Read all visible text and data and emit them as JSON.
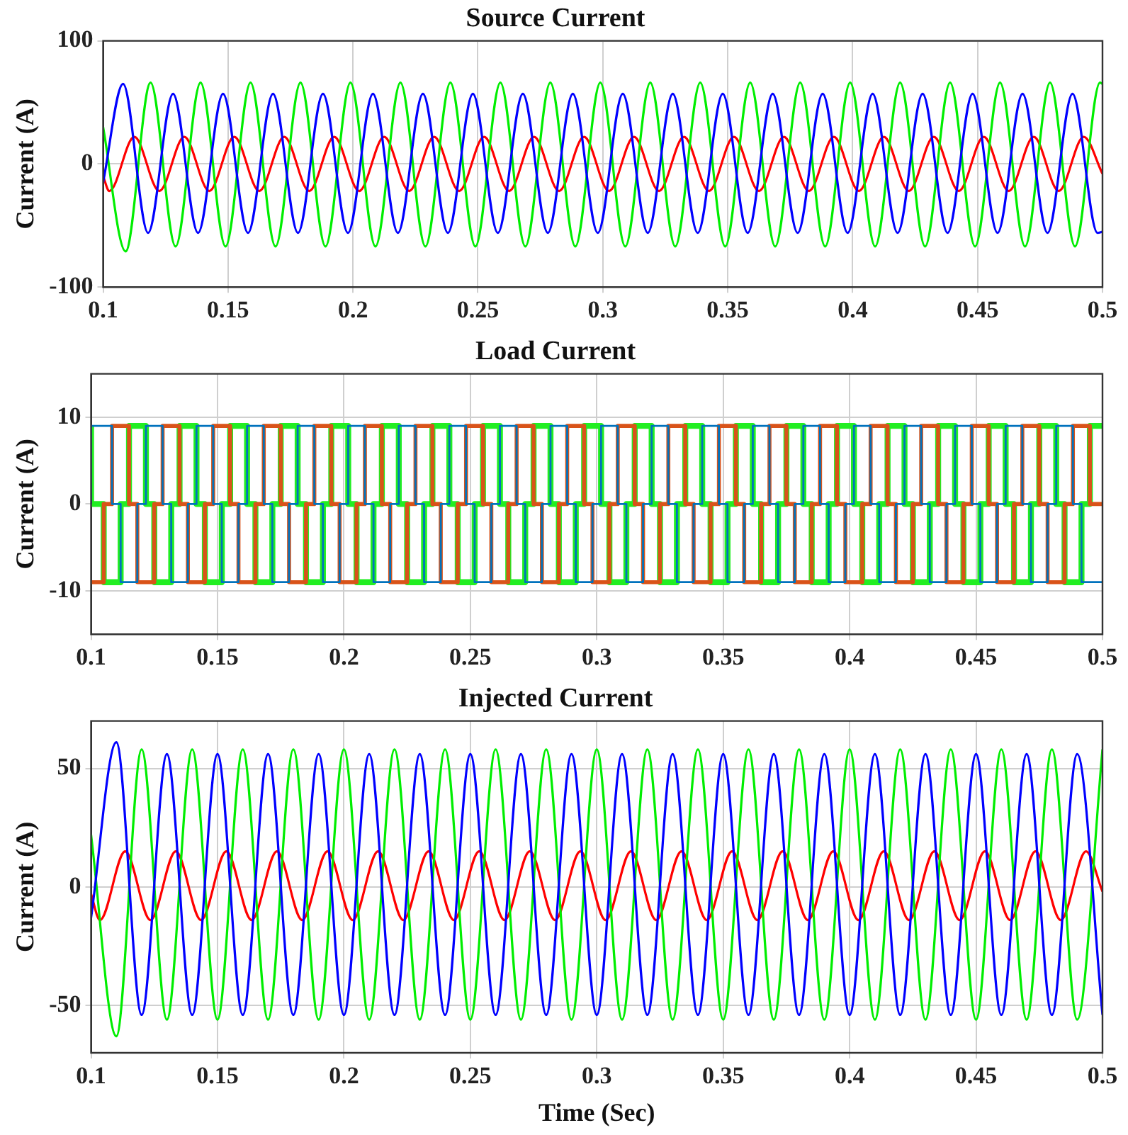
{
  "chart_data": [
    {
      "type": "line",
      "title": "Source Current",
      "ylabel": "Current (A)",
      "xlim": [
        0.1,
        0.5
      ],
      "xticks": [
        0.1,
        0.15,
        0.2,
        0.25,
        0.3,
        0.35,
        0.4,
        0.45,
        0.5
      ],
      "ylim": [
        -100,
        100
      ],
      "yticks": [
        -100,
        0,
        100
      ],
      "grid": true,
      "series": [
        {
          "color": "#0000ff",
          "x": [
            0.1,
            0.108,
            0.118,
            0.128,
            0.138,
            0.148,
            0.158,
            0.168,
            0.178,
            0.188,
            0.198,
            0.208,
            0.218,
            0.228,
            0.238,
            0.248,
            0.258,
            0.268,
            0.278,
            0.288,
            0.298,
            0.308,
            0.318,
            0.328,
            0.338,
            0.348,
            0.358,
            0.368,
            0.378,
            0.388,
            0.398,
            0.408,
            0.418,
            0.428,
            0.438,
            0.448,
            0.458,
            0.468,
            0.478,
            0.488,
            0.498,
            0.5
          ],
          "values": [
            -15,
            65,
            -56,
            57,
            -56,
            57,
            -56,
            57,
            -56,
            57,
            -56,
            57,
            -56,
            57,
            -56,
            57,
            -56,
            57,
            -56,
            57,
            -56,
            57,
            -56,
            57,
            -56,
            57,
            -56,
            57,
            -56,
            57,
            -56,
            57,
            -56,
            57,
            -56,
            57,
            -56,
            57,
            -56,
            57,
            -56,
            -55
          ]
        },
        {
          "color": "#00ee00",
          "x": [
            0.1,
            0.109,
            0.119,
            0.129,
            0.139,
            0.149,
            0.159,
            0.169,
            0.179,
            0.189,
            0.199,
            0.209,
            0.219,
            0.229,
            0.239,
            0.249,
            0.259,
            0.269,
            0.279,
            0.289,
            0.299,
            0.309,
            0.319,
            0.329,
            0.339,
            0.349,
            0.359,
            0.369,
            0.379,
            0.389,
            0.399,
            0.409,
            0.419,
            0.429,
            0.439,
            0.449,
            0.459,
            0.469,
            0.479,
            0.489,
            0.499,
            0.5
          ],
          "values": [
            30,
            -71,
            66,
            -67,
            66,
            -67,
            66,
            -67,
            66,
            -67,
            66,
            -67,
            66,
            -67,
            66,
            -67,
            66,
            -67,
            66,
            -67,
            66,
            -67,
            66,
            -67,
            66,
            -67,
            66,
            -67,
            66,
            -67,
            66,
            -67,
            66,
            -67,
            66,
            -67,
            66,
            -67,
            66,
            -67,
            66,
            65
          ]
        },
        {
          "color": "#ff0000",
          "x": [
            0.1,
            0.1025,
            0.1125,
            0.1225,
            0.1325,
            0.1425,
            0.1525,
            0.1625,
            0.1725,
            0.1825,
            0.1925,
            0.2025,
            0.2125,
            0.2225,
            0.2325,
            0.2425,
            0.2525,
            0.2625,
            0.2725,
            0.2825,
            0.2925,
            0.3025,
            0.3125,
            0.3225,
            0.3325,
            0.3425,
            0.3525,
            0.3625,
            0.3725,
            0.3825,
            0.3925,
            0.4025,
            0.4125,
            0.4225,
            0.4325,
            0.4425,
            0.4525,
            0.4625,
            0.4725,
            0.4825,
            0.4925,
            0.5
          ],
          "values": [
            -10,
            -22,
            22,
            -22,
            22,
            -22,
            22,
            -22,
            22,
            -22,
            22,
            -22,
            22,
            -22,
            22,
            -22,
            22,
            -22,
            22,
            -22,
            22,
            -22,
            22,
            -22,
            22,
            -22,
            22,
            -22,
            22,
            -22,
            22,
            -22,
            22,
            -22,
            22,
            -22,
            22,
            -22,
            22,
            -22,
            22,
            -8
          ]
        }
      ]
    },
    {
      "type": "step",
      "title": "Load Current",
      "ylabel": "Current (A)",
      "xlim": [
        0.1,
        0.5
      ],
      "xticks": [
        0.1,
        0.15,
        0.2,
        0.25,
        0.3,
        0.35,
        0.4,
        0.45,
        0.5
      ],
      "ylim": [
        -15,
        15
      ],
      "yticks": [
        -10,
        0,
        10
      ],
      "grid": true,
      "x": [
        0.1,
        0.105,
        0.1083,
        0.1117,
        0.115,
        0.1183,
        0.1217,
        0.125,
        0.1283,
        0.1317,
        0.135,
        0.1383,
        0.1417,
        0.145,
        0.1483,
        0.1517,
        0.155,
        0.1583,
        0.1617,
        0.165,
        0.1683,
        0.1717,
        0.175,
        0.1783,
        0.1817,
        0.185,
        0.1883,
        0.1917,
        0.195,
        0.1983,
        0.2017,
        0.205,
        0.2083,
        0.2117,
        0.215,
        0.2183,
        0.2217,
        0.225,
        0.2283,
        0.2317,
        0.235,
        0.2383,
        0.2417,
        0.245,
        0.2483,
        0.2517,
        0.255,
        0.2583,
        0.2617,
        0.265,
        0.2683,
        0.2717,
        0.275,
        0.2783,
        0.2817,
        0.285,
        0.2883,
        0.2917,
        0.295,
        0.2983,
        0.3017,
        0.305,
        0.3083,
        0.3117,
        0.315,
        0.3183,
        0.3217,
        0.325,
        0.3283,
        0.3317,
        0.335,
        0.3383,
        0.3417,
        0.345,
        0.3483,
        0.3517,
        0.355,
        0.3583,
        0.3617,
        0.365,
        0.3683,
        0.3717,
        0.375,
        0.3783,
        0.3817,
        0.385,
        0.3883,
        0.3917,
        0.395,
        0.3983,
        0.4017,
        0.405,
        0.4083,
        0.4117,
        0.415,
        0.4183,
        0.4217,
        0.425,
        0.4283,
        0.4317,
        0.435,
        0.4383,
        0.4417,
        0.445,
        0.4483,
        0.4517,
        0.455,
        0.4583,
        0.4617,
        0.465,
        0.4683,
        0.4717,
        0.475,
        0.4783,
        0.4817,
        0.485,
        0.4883,
        0.4917,
        0.495,
        0.4983,
        0.5
      ],
      "series": [
        {
          "color": "#0072bd",
          "values": [
            0,
            9,
            9,
            0,
            -9,
            -9,
            0,
            9,
            9,
            0,
            -9,
            -9,
            0,
            9,
            9,
            0,
            -9,
            -9,
            0,
            9,
            9,
            0,
            -9,
            -9,
            0,
            9,
            9,
            0,
            -9,
            -9,
            0,
            9,
            9,
            0,
            -9,
            -9,
            0,
            9,
            9,
            0,
            -9,
            -9,
            0,
            9,
            9,
            0,
            -9,
            -9,
            0,
            9,
            9,
            0,
            -9,
            -9,
            0,
            9,
            9,
            0,
            -9,
            -9,
            0,
            9,
            9,
            0,
            -9,
            -9,
            0,
            9,
            9,
            0,
            -9,
            -9,
            0,
            9,
            9,
            0,
            -9,
            -9,
            0,
            9,
            9,
            0,
            -9,
            -9,
            0,
            9,
            9,
            0,
            -9,
            -9,
            0,
            9,
            9,
            0,
            -9,
            -9,
            0,
            9,
            9,
            0,
            -9,
            -9,
            0,
            9,
            9,
            0,
            -9,
            -9,
            0,
            9,
            9,
            0,
            -9,
            -9,
            0,
            9,
            9,
            0,
            -9,
            -9,
            -9
          ]
        },
        {
          "color": "#d95319",
          "values": [
            -9,
            -9,
            0,
            9,
            9,
            0,
            -9,
            -9,
            0,
            9,
            9,
            0,
            -9,
            -9,
            0,
            9,
            9,
            0,
            -9,
            -9,
            0,
            9,
            9,
            0,
            -9,
            -9,
            0,
            9,
            9,
            0,
            -9,
            -9,
            0,
            9,
            9,
            0,
            -9,
            -9,
            0,
            9,
            9,
            0,
            -9,
            -9,
            0,
            9,
            9,
            0,
            -9,
            -9,
            0,
            9,
            9,
            0,
            -9,
            -9,
            0,
            9,
            9,
            0,
            -9,
            -9,
            0,
            9,
            9,
            0,
            -9,
            -9,
            0,
            9,
            9,
            0,
            -9,
            -9,
            0,
            9,
            9,
            0,
            -9,
            -9,
            0,
            9,
            9,
            0,
            -9,
            -9,
            0,
            9,
            9,
            0,
            -9,
            -9,
            0,
            9,
            9,
            0,
            -9,
            -9,
            0,
            9,
            9,
            0,
            -9,
            -9,
            0,
            9,
            9,
            0,
            -9,
            -9,
            0,
            9,
            9,
            0,
            -9,
            -9,
            0,
            9,
            9,
            0,
            0
          ]
        },
        {
          "color": "#22ee22",
          "values": [
            9,
            0,
            -9,
            -9,
            0,
            9,
            9,
            0,
            -9,
            -9,
            0,
            9,
            9,
            0,
            -9,
            -9,
            0,
            9,
            9,
            0,
            -9,
            -9,
            0,
            9,
            9,
            0,
            -9,
            -9,
            0,
            9,
            9,
            0,
            -9,
            -9,
            0,
            9,
            9,
            0,
            -9,
            -9,
            0,
            9,
            9,
            0,
            -9,
            -9,
            0,
            9,
            9,
            0,
            -9,
            -9,
            0,
            9,
            9,
            0,
            -9,
            -9,
            0,
            9,
            9,
            0,
            -9,
            -9,
            0,
            9,
            9,
            0,
            -9,
            -9,
            0,
            9,
            9,
            0,
            -9,
            -9,
            0,
            9,
            9,
            0,
            -9,
            -9,
            0,
            9,
            9,
            0,
            -9,
            -9,
            0,
            9,
            9,
            0,
            -9,
            -9,
            0,
            9,
            9,
            0,
            -9,
            -9,
            0,
            9,
            9,
            0,
            -9,
            -9,
            0,
            9,
            9,
            0,
            -9,
            -9,
            0,
            9,
            9,
            0,
            -9,
            -9,
            0,
            9,
            9
          ]
        }
      ]
    },
    {
      "type": "line",
      "title": "Injected Current",
      "xlabel": "Time (Sec)",
      "ylabel": "Current (A)",
      "xlim": [
        0.1,
        0.5
      ],
      "xticks": [
        0.1,
        0.15,
        0.2,
        0.25,
        0.3,
        0.35,
        0.4,
        0.45,
        0.5
      ],
      "ylim": [
        -70,
        70
      ],
      "yticks": [
        -50,
        0,
        50
      ],
      "grid": true,
      "x": [
        0.1,
        0.11,
        0.12,
        0.13,
        0.14,
        0.15,
        0.16,
        0.17,
        0.18,
        0.19,
        0.2,
        0.21,
        0.22,
        0.23,
        0.24,
        0.25,
        0.26,
        0.27,
        0.28,
        0.29,
        0.3,
        0.31,
        0.32,
        0.33,
        0.34,
        0.35,
        0.36,
        0.37,
        0.38,
        0.39,
        0.4,
        0.41,
        0.42,
        0.43,
        0.44,
        0.45,
        0.46,
        0.47,
        0.48,
        0.49,
        0.5
      ],
      "series": [
        {
          "color": "#0000ff",
          "values": [
            -13,
            61,
            -54,
            56,
            -54,
            56,
            -54,
            56,
            -54,
            56,
            -54,
            56,
            -54,
            56,
            -54,
            56,
            -54,
            56,
            -54,
            56,
            -54,
            56,
            -54,
            56,
            -54,
            56,
            -54,
            56,
            -54,
            56,
            -54,
            56,
            -54,
            56,
            -54,
            56,
            -54,
            56,
            -54,
            56,
            -54
          ]
        },
        {
          "color": "#00ee00",
          "values": [
            22,
            -63,
            58,
            -56,
            58,
            -56,
            58,
            -56,
            58,
            -56,
            58,
            -56,
            58,
            -56,
            58,
            -56,
            58,
            -56,
            58,
            -56,
            58,
            -56,
            58,
            -56,
            58,
            -56,
            58,
            -56,
            58,
            -56,
            58,
            -56,
            58,
            -56,
            58,
            -56,
            58,
            -56,
            58,
            -56,
            58
          ]
        },
        {
          "color": "#ff0000",
          "x": [
            0.1,
            0.1035,
            0.1135,
            0.1235,
            0.1335,
            0.1435,
            0.1535,
            0.1635,
            0.1735,
            0.1835,
            0.1935,
            0.2035,
            0.2135,
            0.2235,
            0.2335,
            0.2435,
            0.2535,
            0.2635,
            0.2735,
            0.2835,
            0.2935,
            0.3035,
            0.3135,
            0.3235,
            0.3335,
            0.3435,
            0.3535,
            0.3635,
            0.3735,
            0.3835,
            0.3935,
            0.4035,
            0.4135,
            0.4235,
            0.4335,
            0.4435,
            0.4535,
            0.4635,
            0.4735,
            0.4835,
            0.4935,
            0.5
          ],
          "values": [
            -3,
            -14,
            15,
            -14,
            15,
            -14,
            15,
            -14,
            15,
            -14,
            15,
            -14,
            15,
            -14,
            15,
            -14,
            15,
            -14,
            15,
            -14,
            15,
            -14,
            15,
            -14,
            15,
            -14,
            15,
            -14,
            15,
            -14,
            15,
            -14,
            15,
            -14,
            15,
            -14,
            15,
            -14,
            15,
            -14,
            15,
            -2
          ]
        }
      ]
    }
  ]
}
